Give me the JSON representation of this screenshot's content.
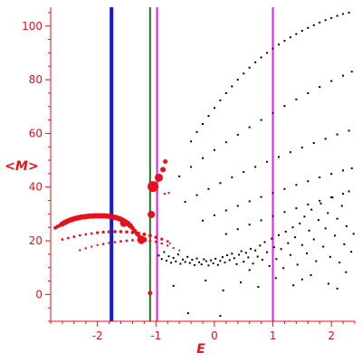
{
  "chart_data": {
    "type": "scatter",
    "xlabel": "E",
    "ylabel": "<M>",
    "xlim": [
      -2.8,
      2.4
    ],
    "ylim": [
      -10,
      107
    ],
    "x_ticks": [
      -2,
      -1,
      0,
      1,
      2
    ],
    "x_tick_labels": [
      "-2",
      "-1",
      "0",
      "1",
      "2"
    ],
    "y_ticks": [
      0,
      20,
      40,
      60,
      80,
      100
    ],
    "y_tick_labels": [
      "0",
      "20",
      "40",
      "60",
      "80",
      "100"
    ],
    "grid": false,
    "colors": {
      "axis": "#e8101a",
      "highlight_points": "#e8101a",
      "spectrum_points": "#000000",
      "line_blue": "#1414e6",
      "line_green": "#1a7a1a",
      "line_magenta": "#e020e0"
    },
    "vertical_lines": [
      {
        "x": -1.76,
        "color": "#1414e6",
        "style": "thick"
      },
      {
        "x": -1.1,
        "color": "#1a7a1a",
        "style": "medium"
      },
      {
        "x": -0.98,
        "color": "#e020e0",
        "style": "medium"
      },
      {
        "x": 1.0,
        "color": "#e020e0",
        "style": "medium"
      }
    ],
    "highlighted_series": {
      "upper_band": [
        [
          -2.72,
          24.8,
          2
        ],
        [
          -2.68,
          25.3,
          2
        ],
        [
          -2.64,
          25.8,
          2
        ],
        [
          -2.6,
          26.3,
          3
        ],
        [
          -2.56,
          26.8,
          3
        ],
        [
          -2.52,
          27.2,
          3
        ],
        [
          -2.48,
          27.6,
          3
        ],
        [
          -2.44,
          27.9,
          3
        ],
        [
          -2.4,
          28.2,
          3
        ],
        [
          -2.36,
          28.4,
          3
        ],
        [
          -2.32,
          28.6,
          3
        ],
        [
          -2.28,
          28.8,
          3
        ],
        [
          -2.24,
          28.9,
          3
        ],
        [
          -2.2,
          29.0,
          3
        ],
        [
          -2.16,
          29.1,
          3
        ],
        [
          -2.12,
          29.2,
          3
        ],
        [
          -2.08,
          29.2,
          3
        ],
        [
          -2.04,
          29.3,
          3
        ],
        [
          -2.0,
          29.3,
          3
        ],
        [
          -1.96,
          29.3,
          3
        ],
        [
          -1.92,
          29.3,
          3
        ],
        [
          -1.88,
          29.3,
          3
        ],
        [
          -1.84,
          29.2,
          3
        ],
        [
          -1.8,
          29.1,
          3
        ],
        [
          -1.76,
          29.0,
          3
        ],
        [
          -1.72,
          28.8,
          3
        ],
        [
          -1.68,
          28.6,
          3
        ],
        [
          -1.64,
          28.3,
          3
        ],
        [
          -1.6,
          28.0,
          3
        ],
        [
          -1.56,
          27.5,
          3
        ],
        [
          -1.52,
          27.0,
          3
        ],
        [
          -1.48,
          26.4,
          3
        ],
        [
          -1.44,
          25.6,
          3
        ],
        [
          -1.4,
          24.7,
          2.5
        ],
        [
          -1.36,
          23.6,
          2.5
        ],
        [
          -1.32,
          22.5,
          2.5
        ],
        [
          -1.28,
          21.4,
          2.5
        ],
        [
          -1.24,
          20.8,
          3
        ],
        [
          -1.2,
          20.4,
          3
        ]
      ],
      "middle_band": [
        [
          -2.6,
          20.5,
          1.4
        ],
        [
          -2.5,
          21.0,
          1.4
        ],
        [
          -2.4,
          21.5,
          1.4
        ],
        [
          -2.3,
          22.0,
          1.4
        ],
        [
          -2.2,
          22.4,
          1.4
        ],
        [
          -2.1,
          22.7,
          1.4
        ],
        [
          -2.0,
          23.0,
          1.6
        ],
        [
          -1.9,
          23.2,
          1.6
        ],
        [
          -1.8,
          23.3,
          1.8
        ],
        [
          -1.7,
          23.4,
          1.8
        ],
        [
          -1.6,
          23.4,
          1.8
        ],
        [
          -1.5,
          23.3,
          1.8
        ],
        [
          -1.4,
          23.1,
          1.8
        ],
        [
          -1.3,
          22.8,
          2
        ],
        [
          -1.2,
          22.4,
          2
        ],
        [
          -1.1,
          21.9,
          2
        ],
        [
          -1.0,
          21.3,
          1.8
        ],
        [
          -0.9,
          20.6,
          1.6
        ],
        [
          -0.8,
          19.8,
          1.4
        ]
      ],
      "lower_band": [
        [
          -2.3,
          16.5,
          1.2
        ],
        [
          -2.2,
          17.2,
          1.2
        ],
        [
          -2.1,
          17.8,
          1.2
        ],
        [
          -2.0,
          18.4,
          1.2
        ],
        [
          -1.9,
          18.8,
          1.3
        ],
        [
          -1.8,
          19.2,
          1.3
        ],
        [
          -1.7,
          19.5,
          1.3
        ],
        [
          -1.6,
          19.8,
          1.4
        ],
        [
          -1.5,
          20.0,
          1.4
        ],
        [
          -1.4,
          20.2,
          1.4
        ],
        [
          -1.3,
          20.3,
          1.5
        ],
        [
          -1.2,
          20.2,
          1.5
        ],
        [
          -1.1,
          20.0,
          1.5
        ],
        [
          -1.0,
          19.6,
          1.4
        ],
        [
          -0.9,
          19.0,
          1.3
        ],
        [
          -0.8,
          18.2,
          1.2
        ],
        [
          -0.7,
          17.3,
          1.1
        ],
        [
          -0.6,
          16.4,
          1.0
        ]
      ],
      "isolated": [
        [
          -1.55,
          26.5,
          4
        ],
        [
          -1.25,
          20.1,
          4
        ],
        [
          -1.08,
          29.8,
          4
        ],
        [
          -1.05,
          40.2,
          6
        ],
        [
          -0.95,
          43.5,
          4.5
        ],
        [
          -0.88,
          46.5,
          3
        ],
        [
          -0.84,
          49.5,
          2.5
        ],
        [
          -0.85,
          37.5,
          1.2
        ],
        [
          -0.78,
          37.8,
          1.2
        ],
        [
          -1.1,
          0.5,
          2.5
        ],
        [
          -0.76,
          19.0,
          1.0
        ]
      ]
    },
    "spectrum_series": {
      "branch_top": [
        [
          -0.4,
          57.0
        ],
        [
          -0.3,
          60.5
        ],
        [
          -0.2,
          63.5
        ],
        [
          -0.1,
          66.5
        ],
        [
          0.0,
          69.5
        ],
        [
          0.1,
          72.3
        ],
        [
          0.2,
          75.0
        ],
        [
          0.3,
          77.5
        ],
        [
          0.4,
          80.0
        ],
        [
          0.5,
          82.3
        ],
        [
          0.6,
          84.5
        ],
        [
          0.7,
          86.5
        ],
        [
          0.8,
          88.3
        ],
        [
          0.9,
          90.0
        ],
        [
          1.0,
          91.6
        ],
        [
          1.1,
          93.1
        ],
        [
          1.2,
          94.5
        ],
        [
          1.3,
          95.8
        ],
        [
          1.4,
          97.0
        ],
        [
          1.5,
          98.2
        ],
        [
          1.6,
          99.3
        ],
        [
          1.7,
          100.3
        ],
        [
          1.8,
          101.3
        ],
        [
          1.9,
          102.2
        ],
        [
          2.0,
          103.0
        ],
        [
          2.1,
          103.8
        ],
        [
          2.2,
          104.5
        ],
        [
          2.3,
          105.0
        ]
      ],
      "branch_two": [
        [
          -0.6,
          44.0
        ],
        [
          -0.4,
          47.5
        ],
        [
          -0.2,
          50.8
        ],
        [
          0.0,
          53.8
        ],
        [
          0.2,
          56.7
        ],
        [
          0.4,
          59.5
        ],
        [
          0.6,
          62.3
        ],
        [
          0.8,
          65.0
        ],
        [
          1.0,
          67.6
        ],
        [
          1.2,
          70.2
        ],
        [
          1.4,
          72.7
        ],
        [
          1.6,
          75.0
        ],
        [
          1.8,
          77.3
        ],
        [
          2.0,
          79.5
        ],
        [
          2.2,
          81.5
        ],
        [
          2.35,
          83.0
        ]
      ],
      "branch_three": [
        [
          -0.5,
          34.5
        ],
        [
          -0.3,
          37.0
        ],
        [
          -0.1,
          39.3
        ],
        [
          0.1,
          41.5
        ],
        [
          0.3,
          43.6
        ],
        [
          0.5,
          45.6
        ],
        [
          0.7,
          47.5
        ],
        [
          0.9,
          49.4
        ],
        [
          1.1,
          51.2
        ],
        [
          1.3,
          53.0
        ],
        [
          1.5,
          54.7
        ],
        [
          1.7,
          56.4
        ],
        [
          1.9,
          58.0
        ],
        [
          2.1,
          59.6
        ],
        [
          2.3,
          61.0
        ]
      ],
      "branch_four": [
        [
          -0.2,
          27.5
        ],
        [
          0.0,
          29.5
        ],
        [
          0.2,
          31.3
        ],
        [
          0.4,
          33.0
        ],
        [
          0.6,
          34.7
        ],
        [
          0.8,
          36.3
        ],
        [
          1.0,
          37.8
        ],
        [
          1.2,
          39.3
        ],
        [
          1.4,
          40.8
        ],
        [
          1.6,
          42.2
        ],
        [
          1.8,
          43.6
        ],
        [
          2.0,
          44.9
        ],
        [
          2.2,
          46.2
        ],
        [
          2.35,
          47.0
        ]
      ],
      "branch_five": [
        [
          0.2,
          22.5
        ],
        [
          0.4,
          24.3
        ],
        [
          0.6,
          26.0
        ],
        [
          0.8,
          27.6
        ],
        [
          1.0,
          29.2
        ],
        [
          1.2,
          30.7
        ],
        [
          1.4,
          32.1
        ],
        [
          1.6,
          33.5
        ],
        [
          1.8,
          34.9
        ],
        [
          2.0,
          36.2
        ],
        [
          2.2,
          37.5
        ]
      ],
      "cloud": [
        [
          -0.95,
          14.5
        ],
        [
          -0.9,
          13.2
        ],
        [
          -0.86,
          15.8
        ],
        [
          -0.82,
          12.6
        ],
        [
          -0.78,
          14.2
        ],
        [
          -0.74,
          11.8
        ],
        [
          -0.7,
          13.6
        ],
        [
          -0.66,
          12.3
        ],
        [
          -0.62,
          14.9
        ],
        [
          -0.58,
          11.4
        ],
        [
          -0.54,
          13.0
        ],
        [
          -0.5,
          12.1
        ],
        [
          -0.46,
          14.0
        ],
        [
          -0.42,
          11.7
        ],
        [
          -0.38,
          12.9
        ],
        [
          -0.34,
          10.9
        ],
        [
          -0.3,
          13.4
        ],
        [
          -0.26,
          12.0
        ],
        [
          -0.22,
          11.2
        ],
        [
          -0.18,
          13.1
        ],
        [
          -0.14,
          12.4
        ],
        [
          -0.1,
          10.8
        ],
        [
          -0.06,
          12.7
        ],
        [
          -0.02,
          11.6
        ],
        [
          0.02,
          13.3
        ],
        [
          0.06,
          11.0
        ],
        [
          0.1,
          12.5
        ],
        [
          0.14,
          13.9
        ],
        [
          0.18,
          11.9
        ],
        [
          0.22,
          14.6
        ],
        [
          0.26,
          12.8
        ],
        [
          0.3,
          15.2
        ],
        [
          0.34,
          13.5
        ],
        [
          0.38,
          11.3
        ],
        [
          0.42,
          14.8
        ],
        [
          0.46,
          16.1
        ],
        [
          0.5,
          12.2
        ],
        [
          0.54,
          15.5
        ],
        [
          0.58,
          13.8
        ],
        [
          0.62,
          17.0
        ],
        [
          0.66,
          11.5
        ],
        [
          0.7,
          16.4
        ],
        [
          0.74,
          14.1
        ],
        [
          0.78,
          18.2
        ],
        [
          0.82,
          12.9
        ],
        [
          0.86,
          19.5
        ],
        [
          0.9,
          15.7
        ],
        [
          0.94,
          10.6
        ],
        [
          0.98,
          20.8
        ],
        [
          1.02,
          17.6
        ],
        [
          1.06,
          13.2
        ],
        [
          1.1,
          22.1
        ],
        [
          1.14,
          16.9
        ],
        [
          1.18,
          9.8
        ],
        [
          1.22,
          23.4
        ],
        [
          1.26,
          19.1
        ],
        [
          1.3,
          14.7
        ],
        [
          1.34,
          25.0
        ],
        [
          1.38,
          21.3
        ],
        [
          1.42,
          11.1
        ],
        [
          1.46,
          26.4
        ],
        [
          1.5,
          18.4
        ],
        [
          1.54,
          29.0
        ],
        [
          1.58,
          15.3
        ],
        [
          1.62,
          23.8
        ],
        [
          1.66,
          31.6
        ],
        [
          1.7,
          20.5
        ],
        [
          1.74,
          12.4
        ],
        [
          1.78,
          27.7
        ],
        [
          1.82,
          33.9
        ],
        [
          1.86,
          17.8
        ],
        [
          1.9,
          24.6
        ],
        [
          1.94,
          30.3
        ],
        [
          1.98,
          14.0
        ],
        [
          2.02,
          36.1
        ],
        [
          2.06,
          21.9
        ],
        [
          2.1,
          28.2
        ],
        [
          2.14,
          11.9
        ],
        [
          2.18,
          33.0
        ],
        [
          2.22,
          18.7
        ],
        [
          2.26,
          25.4
        ],
        [
          2.3,
          38.4
        ],
        [
          2.34,
          15.9
        ],
        [
          2.38,
          22.6
        ],
        [
          0.45,
          4.5
        ],
        [
          0.75,
          2.8
        ],
        [
          1.05,
          6.1
        ],
        [
          1.35,
          3.4
        ],
        [
          1.65,
          7.2
        ],
        [
          1.95,
          4.0
        ],
        [
          2.25,
          8.3
        ],
        [
          0.15,
          1.5
        ],
        [
          -0.15,
          5.2
        ],
        [
          0.6,
          9.1
        ],
        [
          1.5,
          5.6
        ],
        [
          2.1,
          2.2
        ],
        [
          -0.45,
          -7.0
        ],
        [
          0.1,
          -8.0
        ],
        [
          -0.7,
          3.2
        ]
      ]
    }
  }
}
